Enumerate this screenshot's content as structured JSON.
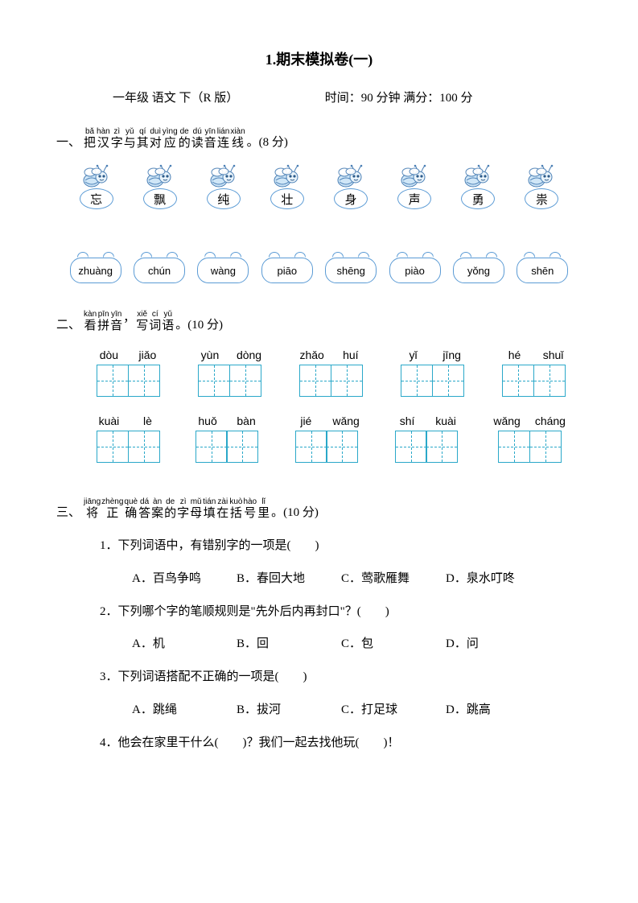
{
  "title": "1.期末模拟卷(一)",
  "subtitle": {
    "grade": "一年级 语文 下（R 版）",
    "time": "时间：90 分钟 满分：100 分"
  },
  "colors": {
    "accent": "#5b9bd5",
    "box": "#2aa8c9",
    "text": "#000000",
    "bg": "#ffffff"
  },
  "s1": {
    "head_ruby": [
      {
        "py": "bǎ",
        "ch": "把"
      },
      {
        "py": "hàn",
        "ch": "汉"
      },
      {
        "py": "zì",
        "ch": "字"
      },
      {
        "py": "yǔ",
        "ch": "与"
      },
      {
        "py": "qí",
        "ch": "其"
      },
      {
        "py": "duì",
        "ch": "对"
      },
      {
        "py": "yìng",
        "ch": "应"
      },
      {
        "py": "de",
        "ch": "的"
      },
      {
        "py": "dú",
        "ch": "读"
      },
      {
        "py": "yīn",
        "ch": "音"
      },
      {
        "py": "lián",
        "ch": "连"
      },
      {
        "py": "xiàn",
        "ch": "线"
      }
    ],
    "head_prefix": "一、",
    "head_tail": "。(8 分)",
    "chars": [
      "忘",
      "飘",
      "纯",
      "壮",
      "身",
      "声",
      "勇",
      "祟"
    ],
    "clouds": [
      "zhuàng",
      "chún",
      "wàng",
      "piāo",
      "shēng",
      "piào",
      "yǒng",
      "shēn"
    ]
  },
  "s2": {
    "head_prefix": "二、",
    "head_ruby": [
      {
        "py": "kàn",
        "ch": "看"
      },
      {
        "py": "pīn",
        "ch": "拼"
      },
      {
        "py": "yīn",
        "ch": "音"
      },
      {
        "py": "",
        "ch": "，"
      },
      {
        "py": "xiě",
        "ch": "写"
      },
      {
        "py": "cí",
        "ch": "词"
      },
      {
        "py": "yǔ",
        "ch": "语"
      }
    ],
    "head_tail": "。(10 分)",
    "row1": [
      [
        "dòu",
        "jiǎo"
      ],
      [
        "yùn",
        "dòng"
      ],
      [
        "zhǎo",
        "huí"
      ],
      [
        "yǐ",
        "jīng"
      ],
      [
        "hé",
        "shuǐ"
      ]
    ],
    "row2": [
      [
        "kuài",
        "lè"
      ],
      [
        "huǒ",
        "bàn"
      ],
      [
        "jié",
        "wǎng"
      ],
      [
        "shí",
        "kuài"
      ],
      [
        "wǎng",
        "cháng"
      ]
    ]
  },
  "s3": {
    "head_prefix": "三、",
    "head_ruby": [
      {
        "py": "jiāng",
        "ch": "将"
      },
      {
        "py": "zhèng",
        "ch": "正"
      },
      {
        "py": "què",
        "ch": "确"
      },
      {
        "py": "dá",
        "ch": "答"
      },
      {
        "py": "àn",
        "ch": "案"
      },
      {
        "py": "de",
        "ch": "的"
      },
      {
        "py": "zì",
        "ch": "字"
      },
      {
        "py": "mǔ",
        "ch": "母"
      },
      {
        "py": "tián",
        "ch": "填"
      },
      {
        "py": "zài",
        "ch": "在"
      },
      {
        "py": "kuò",
        "ch": "括"
      },
      {
        "py": "hào",
        "ch": "号"
      },
      {
        "py": "lǐ",
        "ch": "里"
      }
    ],
    "head_tail": "。(10 分)",
    "q1": {
      "stem": "1．下列词语中，有错别字的一项是(　　)",
      "opts": [
        "A．百鸟争鸣",
        "B．春回大地",
        "C．莺歌雁舞",
        "D．泉水叮咚"
      ]
    },
    "q2": {
      "stem": "2．下列哪个字的笔顺规则是\"先外后内再封口\"？(　　)",
      "opts": [
        "A．机",
        "B．回",
        "C．包",
        "D．问"
      ]
    },
    "q3": {
      "stem": "3．下列词语搭配不正确的一项是(　　)",
      "opts": [
        "A．跳绳",
        "B．拔河",
        "C．打足球",
        "D．跳高"
      ]
    },
    "q4": {
      "stem": "4．他会在家里干什么(　　)？我们一起去找他玩(　　)！"
    }
  }
}
